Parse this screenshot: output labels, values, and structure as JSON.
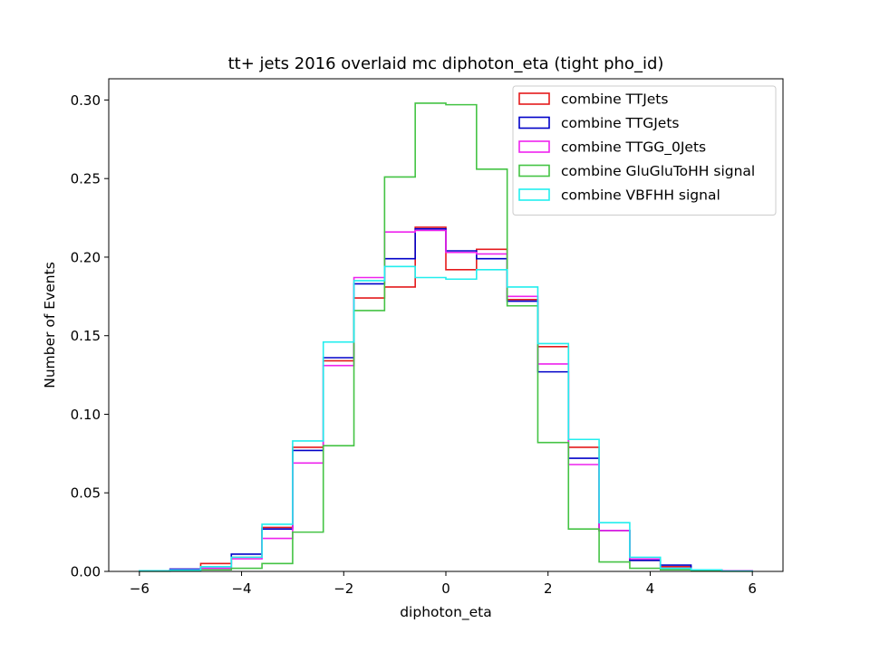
{
  "chart_data": {
    "type": "histogram-step",
    "title": "tt+ jets 2016 overlaid mc diphoton_eta (tight pho_id)",
    "xlabel": "diphoton_eta",
    "ylabel": "Number of Events",
    "xlim": [
      -6.6,
      6.6
    ],
    "ylim": [
      0,
      0.3135
    ],
    "xticks": [
      -6,
      -4,
      -2,
      0,
      2,
      4,
      6
    ],
    "yticks": [
      0.0,
      0.05,
      0.1,
      0.15,
      0.2,
      0.25,
      0.3
    ],
    "ytick_labels": [
      "0.00",
      "0.05",
      "0.10",
      "0.15",
      "0.20",
      "0.25",
      "0.30"
    ],
    "xtick_labels": [
      "−6",
      "−4",
      "−2",
      "0",
      "2",
      "4",
      "6"
    ],
    "legend_position": "upper right",
    "bin_edges": [
      -6.0,
      -5.4,
      -4.8,
      -4.2,
      -3.6,
      -3.0,
      -2.4,
      -1.8,
      -1.2,
      -0.6,
      0.0,
      0.6,
      1.2,
      1.8,
      2.4,
      3.0,
      3.6,
      4.2,
      4.8,
      5.4,
      6.0
    ],
    "series": [
      {
        "name": "combine TTJets",
        "color": "#e41a1c",
        "values": [
          0.0002,
          0.001,
          0.005,
          0.009,
          0.028,
          0.079,
          0.134,
          0.174,
          0.181,
          0.219,
          0.192,
          0.205,
          0.173,
          0.143,
          0.079,
          0.026,
          0.007,
          0.003,
          0.001,
          0.0003
        ]
      },
      {
        "name": "combine TTGJets",
        "color": "#0000c8",
        "values": [
          0.0002,
          0.0015,
          0.003,
          0.011,
          0.027,
          0.077,
          0.136,
          0.183,
          0.199,
          0.218,
          0.204,
          0.199,
          0.172,
          0.127,
          0.072,
          0.026,
          0.007,
          0.004,
          0.001,
          0.0003
        ]
      },
      {
        "name": "combine TTGG_0Jets",
        "color": "#ee22ee",
        "values": [
          0.0002,
          0.001,
          0.002,
          0.008,
          0.021,
          0.069,
          0.131,
          0.187,
          0.216,
          0.217,
          0.203,
          0.202,
          0.175,
          0.132,
          0.068,
          0.026,
          0.008,
          0.002,
          0.001,
          0.0003
        ]
      },
      {
        "name": "combine GluGluToHH signal",
        "color": "#44c344",
        "values": [
          0.0001,
          0.0005,
          0.001,
          0.002,
          0.005,
          0.025,
          0.08,
          0.166,
          0.251,
          0.298,
          0.297,
          0.256,
          0.169,
          0.082,
          0.027,
          0.006,
          0.002,
          0.001,
          0.0005,
          0.0001
        ]
      },
      {
        "name": "combine VBFHH signal",
        "color": "#22eeee",
        "values": [
          0.0004,
          0.0008,
          0.003,
          0.009,
          0.03,
          0.083,
          0.146,
          0.185,
          0.194,
          0.187,
          0.186,
          0.192,
          0.181,
          0.145,
          0.084,
          0.031,
          0.009,
          0.002,
          0.001,
          0.0002
        ]
      }
    ]
  }
}
